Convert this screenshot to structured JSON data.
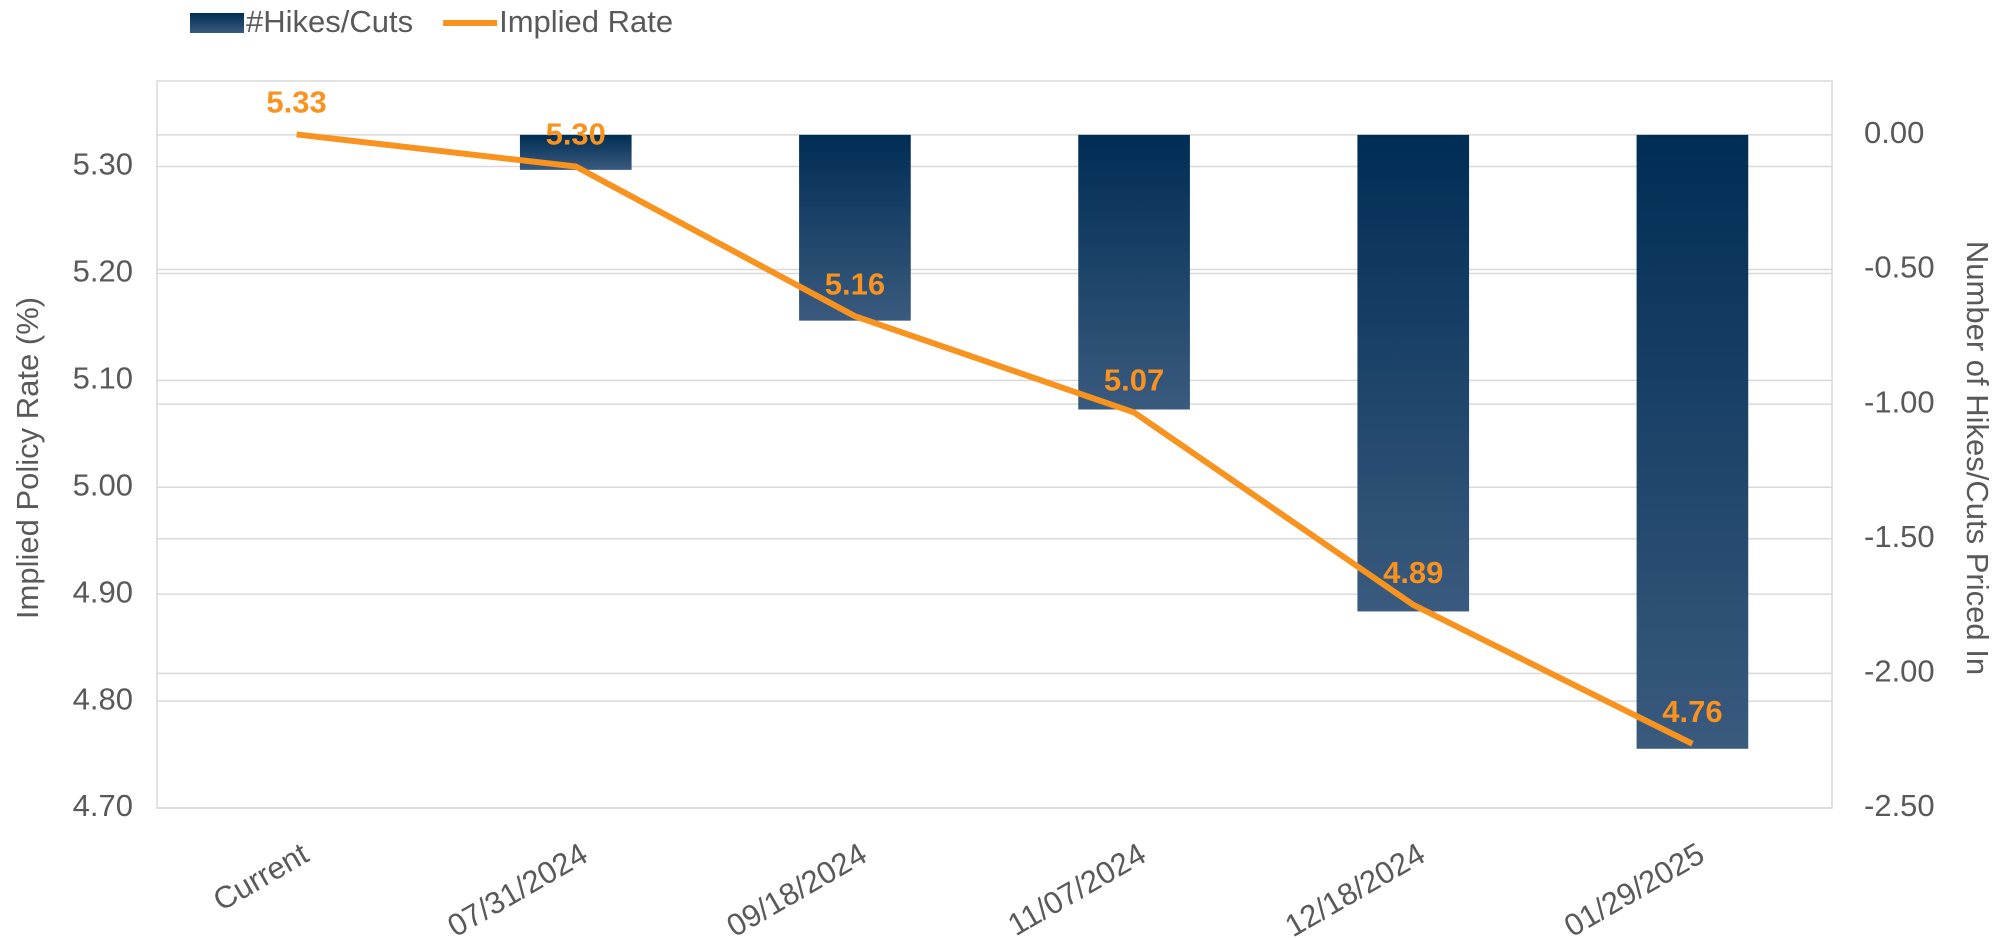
{
  "chart_data": {
    "type": "bar_line",
    "categories": [
      "Current",
      "07/31/2024",
      "09/18/2024",
      "11/07/2024",
      "12/18/2024",
      "01/29/2025"
    ],
    "series": [
      {
        "name": "#Hikes/Cuts",
        "type": "bar",
        "axis": "y2",
        "color": "#0b3358",
        "values": [
          0,
          -0.13,
          -0.69,
          -1.02,
          -1.77,
          -2.28
        ]
      },
      {
        "name": "Implied Rate",
        "type": "line",
        "axis": "y",
        "color": "#f7931e",
        "values": [
          5.33,
          5.3,
          5.16,
          5.07,
          4.89,
          4.76
        ],
        "value_labels": [
          "5.33",
          "5.30",
          "5.16",
          "5.07",
          "4.89",
          "4.76"
        ]
      }
    ],
    "ylabel": "Implied Policy Rate (%)",
    "y2label": "Number of Hikes/Cuts Priced In",
    "ylim": [
      4.7,
      5.38
    ],
    "yticks": [
      {
        "value": 4.7,
        "label": "4.70"
      },
      {
        "value": 4.8,
        "label": "4.80"
      },
      {
        "value": 4.9,
        "label": "4.90"
      },
      {
        "value": 5.0,
        "label": "5.00"
      },
      {
        "value": 5.1,
        "label": "5.10"
      },
      {
        "value": 5.2,
        "label": "5.20"
      },
      {
        "value": 5.3,
        "label": "5.30"
      }
    ],
    "y2lim": [
      -2.5,
      0.2
    ],
    "y2ticks": [
      {
        "value": -2.5,
        "label": "-2.50"
      },
      {
        "value": -2.0,
        "label": "-2.00"
      },
      {
        "value": -1.5,
        "label": "-1.50"
      },
      {
        "value": -1.0,
        "label": "-1.00"
      },
      {
        "value": -0.5,
        "label": "-0.50"
      },
      {
        "value": 0,
        "label": "0.00"
      }
    ],
    "grid": true,
    "legend": "top-left"
  }
}
